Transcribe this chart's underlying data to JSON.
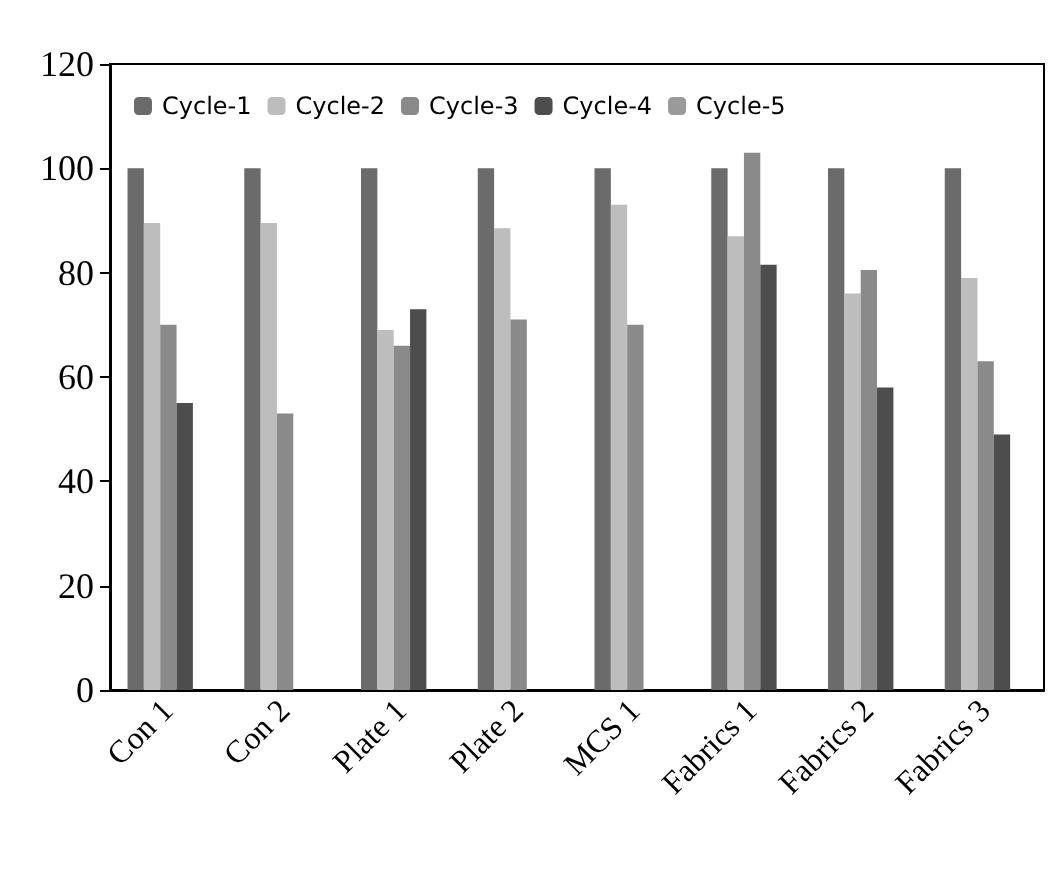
{
  "chart_data": {
    "type": "bar",
    "categories": [
      "Con 1",
      "Con 2",
      "Plate 1",
      "Plate 2",
      "MCS 1",
      "Fabrics 1",
      "Fabrics 2",
      "Fabrics 3"
    ],
    "series": [
      {
        "name": "Cycle-1",
        "color": "#6b6b6b",
        "values": [
          100,
          100,
          100,
          100,
          100,
          100,
          100,
          100
        ]
      },
      {
        "name": "Cycle-2",
        "color": "#bdbdbd",
        "values": [
          89.5,
          89.5,
          69,
          88.5,
          93,
          87,
          76,
          79
        ]
      },
      {
        "name": "Cycle-3",
        "color": "#8a8a8a",
        "values": [
          70,
          53,
          66,
          71,
          70,
          103,
          80.5,
          63
        ]
      },
      {
        "name": "Cycle-4",
        "color": "#4d4d4d",
        "values": [
          55,
          null,
          73,
          null,
          null,
          81.5,
          58,
          49
        ]
      },
      {
        "name": "Cycle-5",
        "color": "#9a9a9a",
        "values": [
          null,
          null,
          null,
          null,
          null,
          null,
          null,
          null
        ]
      }
    ],
    "ylim": [
      0,
      120
    ],
    "yticks": [
      0,
      20,
      40,
      60,
      80,
      100,
      120
    ],
    "grid": false,
    "legend": "top"
  }
}
